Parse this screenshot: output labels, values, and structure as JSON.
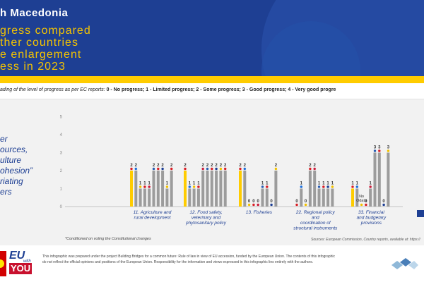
{
  "header": {
    "title_lines": [
      "h Macedonia",
      "gress compared",
      "ther countries",
      "e enlargement",
      "ess in 2023"
    ]
  },
  "legend": {
    "intro": "ading of the level of progress as per EC reports:",
    "levels": [
      "0 - No progress;",
      "1 - Limited progress;",
      "2 - Some progress;",
      "3 - Good progress;",
      "4 - Very good progre"
    ]
  },
  "sidebar": {
    "lines": [
      "er",
      "ources,",
      "ulture",
      "ohesion”",
      "riating",
      "ers"
    ]
  },
  "chart_data": {
    "type": "bar",
    "y_ticks": [
      "0",
      "1",
      "2",
      "3",
      "4",
      "5"
    ],
    "ylim": [
      0,
      5
    ],
    "grid": false,
    "groups": [
      {
        "label_lines": [
          "11. Agriculture and",
          "rural development"
        ],
        "values": [
          2,
          2,
          1,
          1,
          1,
          2,
          2,
          2,
          1,
          2
        ],
        "labels": [
          "2",
          "2",
          "1",
          "1",
          "1",
          "2",
          "2",
          "2",
          "1",
          "2"
        ]
      },
      {
        "label_lines": [
          "12. Food safety,",
          "veterinary and",
          "phytosanitary policy"
        ],
        "values": [
          2,
          1,
          1,
          1,
          2,
          2,
          2,
          2,
          2,
          2
        ],
        "labels": [
          "2",
          "1",
          "1",
          "1",
          "2",
          "2",
          "2",
          "2",
          "2",
          "2"
        ]
      },
      {
        "label_lines": [
          "13. Fisheries"
        ],
        "values": [
          2,
          2,
          0,
          0,
          0,
          1,
          1,
          0,
          2
        ],
        "labels": [
          "2",
          "2",
          "0",
          "0",
          "0",
          "1",
          "1",
          "0",
          "2"
        ]
      },
      {
        "label_lines": [
          "22. Regional policy",
          "and",
          "coordination of",
          "structural instruments"
        ],
        "values": [
          0,
          1,
          0,
          2,
          2,
          1,
          1,
          1,
          1
        ],
        "labels": [
          "0",
          "1",
          "0",
          "2",
          "2",
          "1",
          "1",
          "1",
          "1"
        ]
      },
      {
        "label_lines": [
          "33. Financial",
          "and budgetary",
          "provisions"
        ],
        "values": [
          1,
          1,
          0,
          0,
          1,
          3,
          3,
          0,
          3
        ],
        "labels": [
          "1",
          "1",
          "No Odata",
          "0",
          "1",
          "3",
          "3",
          "0",
          "3"
        ]
      }
    ],
    "no_data_label": "No Odata"
  },
  "notes": {
    "footnote": "*Conditioned on voting the Constitutional changes",
    "sources": "Sources: European Commission, Country reports, available at: https://"
  },
  "footer": {
    "logo_eu": "EU",
    "logo_with": "with",
    "logo_you": "YOU",
    "disclaimer": "This infographic was prepared under the project Building Bridges for a common future: Rule of law in view of EU accession, funded by the European Union. The contents of this infographic do not reflect the official opinions and positions of the European Union. Responsibility for the information and views expressed in this infographic lies entirely with the authors."
  },
  "colors": {
    "header_blue": "#1e3f93",
    "accent_yellow": "#f5c400",
    "macedonia_bar": "#ffcc00",
    "other_bar": "#9c9c9c",
    "red": "#c8102e"
  }
}
